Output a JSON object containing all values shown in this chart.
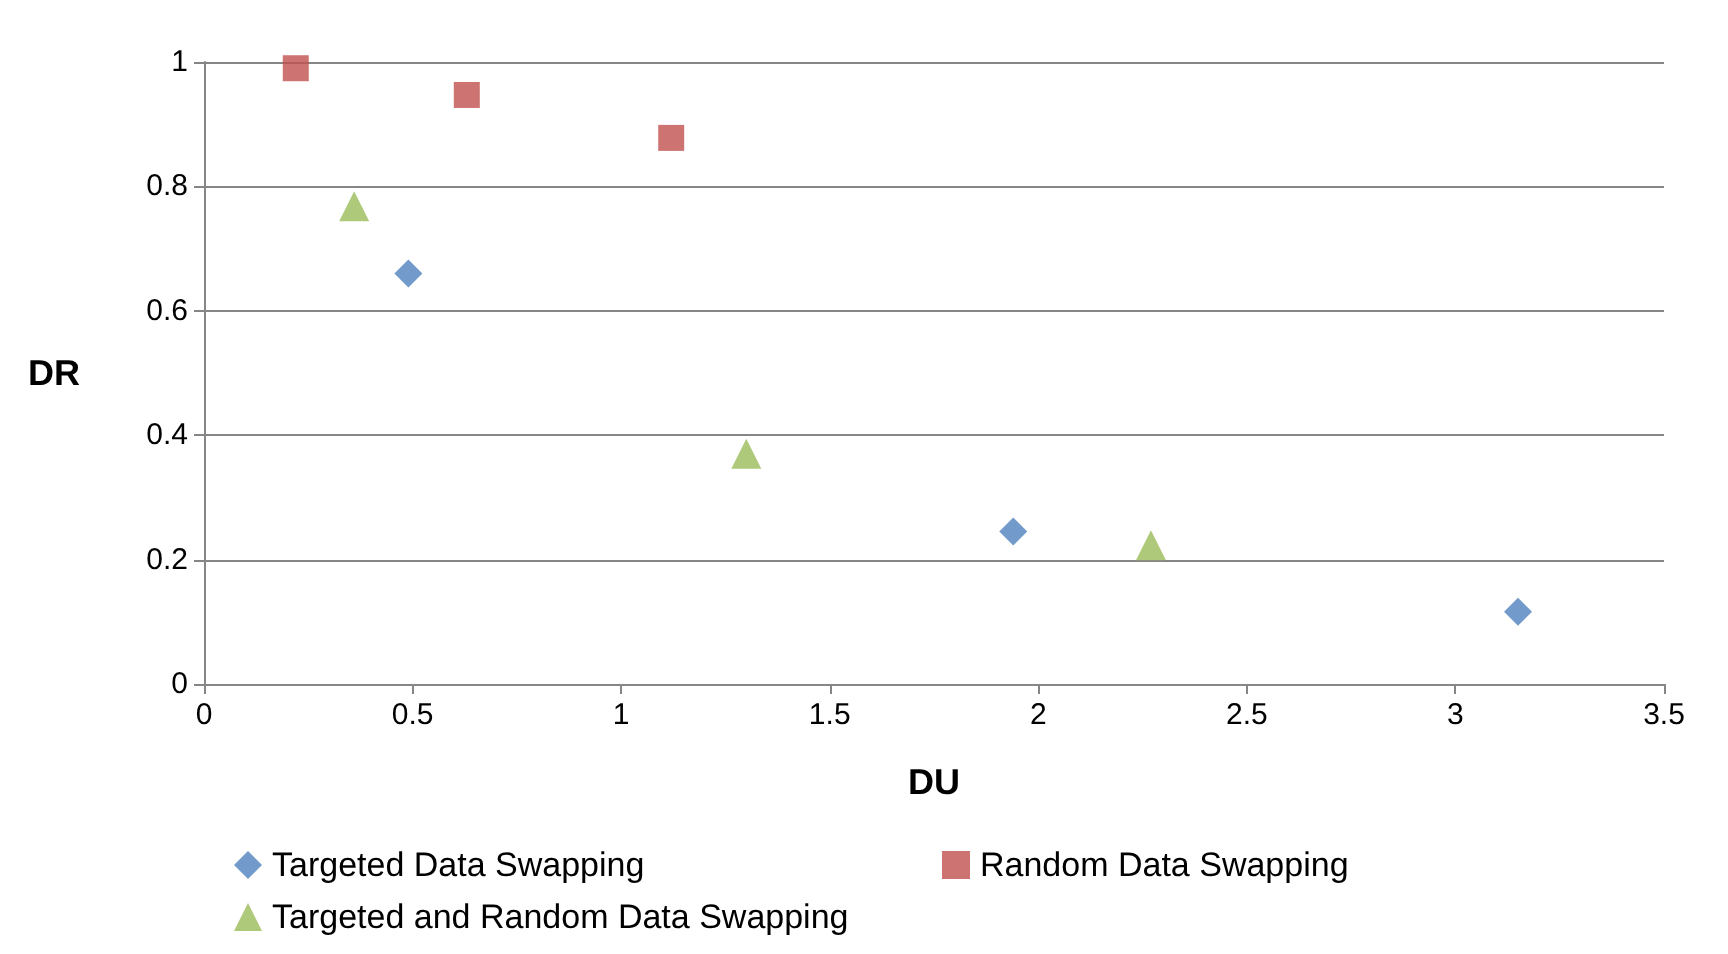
{
  "chart_data": {
    "type": "scatter",
    "xlabel": "DU",
    "ylabel": "DR",
    "xlim": [
      0,
      3.5
    ],
    "xticks": [
      0,
      0.5,
      1,
      1.5,
      2,
      2.5,
      3,
      3.5
    ],
    "ylim": [
      0,
      1
    ],
    "yticks": [
      0,
      0.2,
      0.4,
      0.6,
      0.8,
      1
    ],
    "grid": "y",
    "legend": "bottom",
    "series": [
      {
        "name": "Targeted Data Swapping",
        "color": "#4f81bd",
        "marker": "diamond",
        "x": [
          0.49,
          1.94,
          3.15
        ],
        "values": [
          0.66,
          0.245,
          0.116
        ]
      },
      {
        "name": "Random Data Swapping",
        "color": "#c0504d",
        "marker": "square",
        "x": [
          0.22,
          0.63,
          1.12
        ],
        "values": [
          0.99,
          0.947,
          0.878
        ]
      },
      {
        "name": "Targeted and Random Data Swapping",
        "color": "#9bbb59",
        "marker": "triangle",
        "x": [
          0.36,
          1.3,
          2.27
        ],
        "values": [
          0.768,
          0.37,
          0.223
        ]
      }
    ]
  }
}
